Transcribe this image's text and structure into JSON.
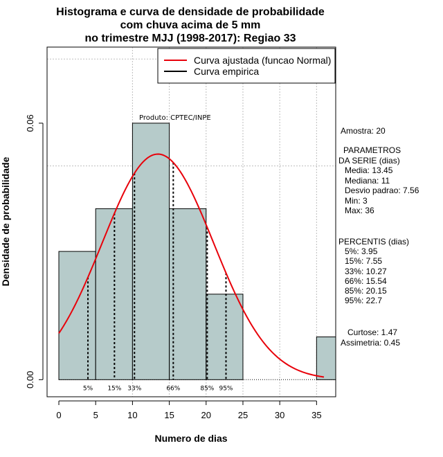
{
  "chart_data": {
    "type": "histogram",
    "title": [
      "Histograma e curva de densidade de probabilidade",
      "com chuva acima de 5 mm",
      "no trimestre MJJ (1998-2017): Regiao 33"
    ],
    "xlabel": "Numero de dias",
    "ylabel": "Densidade de probabilidade",
    "xlim": [
      -1.6,
      37.6
    ],
    "ylim": [
      -0.004,
      0.0778
    ],
    "x_ticks": [
      0,
      5,
      10,
      15,
      20,
      25,
      30,
      35
    ],
    "y_ticks": [
      0.0,
      0.06
    ],
    "y_tick_labels": [
      "0.00",
      "0.06"
    ],
    "grid_x": [
      10,
      15,
      20,
      25,
      30,
      35
    ],
    "grid_y": [
      0.05,
      0.075
    ],
    "bins": [
      {
        "from": 0,
        "to": 5,
        "density": 0.03
      },
      {
        "from": 5,
        "to": 10,
        "density": 0.04
      },
      {
        "from": 10,
        "to": 15,
        "density": 0.06
      },
      {
        "from": 15,
        "to": 20,
        "density": 0.04
      },
      {
        "from": 20,
        "to": 25,
        "density": 0.02
      },
      {
        "from": 35,
        "to": 37.6,
        "density": 0.01
      }
    ],
    "bar_color": "#b6cbca",
    "normal_curve": {
      "mean": 13.45,
      "sd": 7.56,
      "color": "#e8000a",
      "x_range": [
        0,
        36
      ]
    },
    "percentile_lines": [
      {
        "label": "5%",
        "x": 3.95
      },
      {
        "label": "15%",
        "x": 7.55
      },
      {
        "label": "33%",
        "x": 10.27
      },
      {
        "label": "66%",
        "x": 15.54
      },
      {
        "label": "85%",
        "x": 20.15
      },
      {
        "label": "95%",
        "x": 22.7
      }
    ],
    "legend": {
      "placement": "top-right",
      "entries": [
        {
          "label": "Curva ajustada (funcao Normal)",
          "color": "#e8000a"
        },
        {
          "label": "Curva empirica",
          "color": "#000000"
        }
      ]
    },
    "annotation": "Produto: CPTEC/INPE"
  },
  "side_panel": {
    "amostra": "Amostra: 20",
    "parametros_title_1": "PARAMETROS",
    "parametros_title_2": "DA SERIE (dias)",
    "media": "Media: 13.45",
    "mediana": "Mediana: 11",
    "desvio": "Desvio padrao: 7.56",
    "min": "Min: 3",
    "max": "Max: 36",
    "percentis_title": "PERCENTIS (dias)",
    "p5": "5%: 3.95",
    "p15": "15%: 7.55",
    "p33": "33%: 10.27",
    "p66": "66%: 15.54",
    "p85": "85%: 20.15",
    "p95": "95%: 22.7",
    "curtose": "Curtose: 1.47",
    "assimetria": "Assimetria: 0.45"
  }
}
